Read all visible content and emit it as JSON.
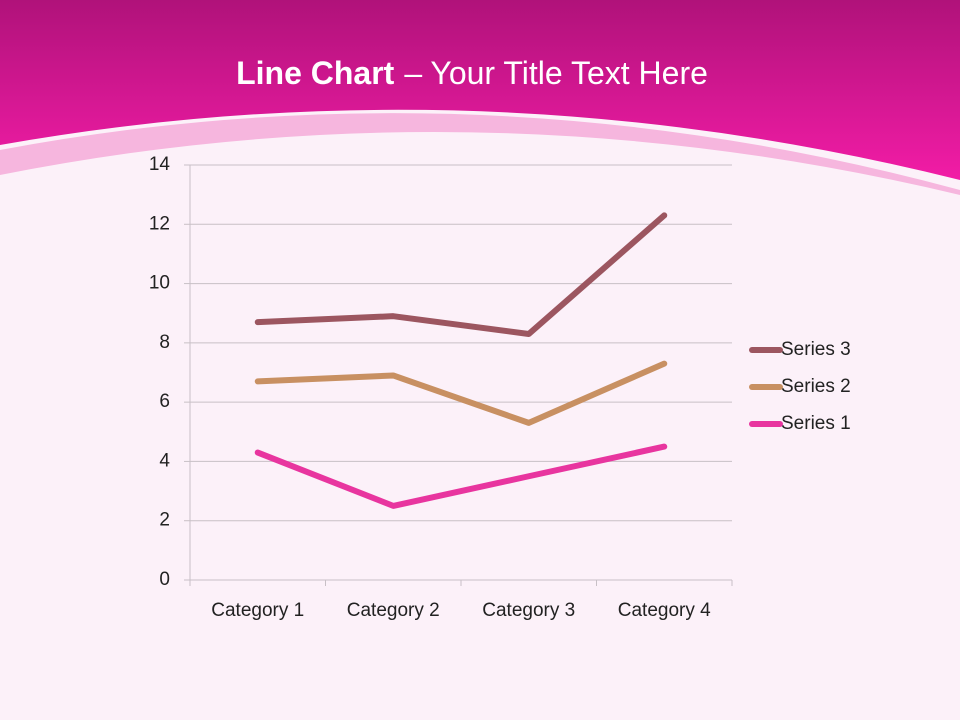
{
  "chart_data": {
    "type": "line",
    "title": "Line Chart",
    "subtitle": "– Your Title Text Here",
    "categories": [
      "Category 1",
      "Category 2",
      "Category 3",
      "Category 4"
    ],
    "series": [
      {
        "name": "Series 1",
        "color": "#e8359f",
        "values": [
          4.3,
          2.5,
          3.5,
          4.5
        ]
      },
      {
        "name": "Series 2",
        "color": "#c89062",
        "values": [
          6.7,
          6.9,
          5.3,
          7.3
        ]
      },
      {
        "name": "Series 3",
        "color": "#9c5660",
        "values": [
          8.7,
          8.9,
          8.3,
          12.3
        ]
      }
    ],
    "ylim": [
      0,
      14
    ],
    "yticks": [
      0,
      2,
      4,
      6,
      8,
      10,
      12,
      14
    ],
    "grid": true,
    "legend": "right"
  }
}
